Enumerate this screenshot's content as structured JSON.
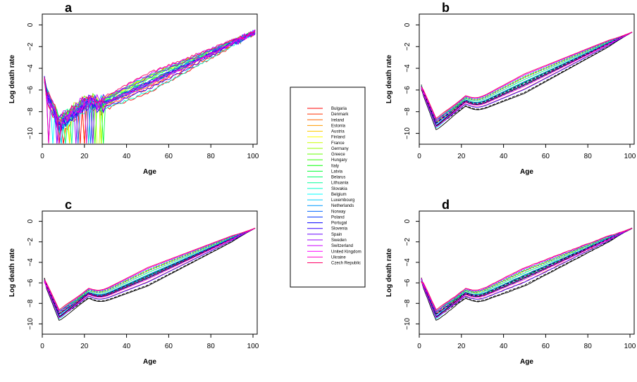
{
  "chart_data": {
    "type": "line",
    "xlabel": "Age",
    "ylabel": "Log death rate",
    "xlim": [
      0,
      102
    ],
    "ylim": [
      -11,
      1
    ],
    "x_ticks": [
      0,
      20,
      40,
      60,
      80,
      100
    ],
    "y_ticks": [
      0,
      -2,
      -4,
      -6,
      -8,
      -10
    ],
    "x_tick_labels": [
      "0",
      "20",
      "40",
      "60",
      "80",
      "100"
    ],
    "y_tick_labels": [
      "0",
      "−2",
      "−4",
      "−6",
      "−8",
      "−10"
    ],
    "grid": false,
    "legend_placement": "center",
    "legend": [
      {
        "name": "Bulgaria",
        "color": "#FF0000"
      },
      {
        "name": "Denmark",
        "color": "#FF3300"
      },
      {
        "name": "Ireland",
        "color": "#FF6600"
      },
      {
        "name": "Estonia",
        "color": "#FF9900"
      },
      {
        "name": "Austria",
        "color": "#FFCC00"
      },
      {
        "name": "Finland",
        "color": "#FFFF00"
      },
      {
        "name": "France",
        "color": "#CCFF00"
      },
      {
        "name": "Germany",
        "color": "#99FF00"
      },
      {
        "name": "Greece",
        "color": "#66FF00"
      },
      {
        "name": "Hungary",
        "color": "#33FF00"
      },
      {
        "name": "Italy",
        "color": "#00FF00"
      },
      {
        "name": "Latvia",
        "color": "#00FF33"
      },
      {
        "name": "Belarus",
        "color": "#00FF66"
      },
      {
        "name": "Lithuania",
        "color": "#00FF99"
      },
      {
        "name": "Slovakia",
        "color": "#00FFCC"
      },
      {
        "name": "Belgium",
        "color": "#00FFFF"
      },
      {
        "name": "Luxembourg",
        "color": "#00CCFF"
      },
      {
        "name": "Netherlands",
        "color": "#0099FF"
      },
      {
        "name": "Norway",
        "color": "#0066FF"
      },
      {
        "name": "Poland",
        "color": "#0033FF"
      },
      {
        "name": "Portugal",
        "color": "#0000FF"
      },
      {
        "name": "Slovenia",
        "color": "#3300FF"
      },
      {
        "name": "Spain",
        "color": "#6600FF"
      },
      {
        "name": "Sweden",
        "color": "#9900FF"
      },
      {
        "name": "Switzerland",
        "color": "#CC00FF"
      },
      {
        "name": "United Kingdom",
        "color": "#FF00FF"
      },
      {
        "name": "Ukraine",
        "color": "#FF00CC"
      },
      {
        "name": "Czech Republic",
        "color": "#FF0066"
      }
    ],
    "panels": [
      {
        "letter": "a",
        "style": "raw",
        "ylabel": "Log death rate",
        "xlabel": "Age"
      },
      {
        "letter": "b",
        "style": "smooth",
        "ylabel": "Log death rate",
        "xlabel": "Age"
      },
      {
        "letter": "c",
        "style": "smooth",
        "ylabel": "Log death rate",
        "xlabel": "Age"
      },
      {
        "letter": "d",
        "style": "smooth",
        "ylabel": "Log death rate",
        "xlabel": "Age"
      }
    ]
  }
}
